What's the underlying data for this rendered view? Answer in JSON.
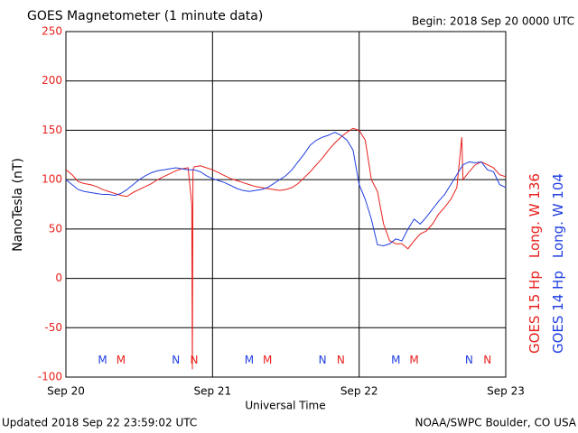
{
  "chart_data": {
    "type": "line",
    "title": "GOES Magnetometer (1 minute data)",
    "subtitle": "Begin:  2018 Sep 20 0000 UTC",
    "ylabel": "NanoTesla (nT)",
    "xlabel": "Universal Time",
    "footer_left": "Updated 2018 Sep 22 23:59:02 UTC",
    "footer_right": "NOAA/SWPC Boulder, CO USA",
    "xlim": [
      0,
      72
    ],
    "xticks": [
      {
        "value": 0,
        "label": "Sep 20"
      },
      {
        "value": 24,
        "label": "Sep 21"
      },
      {
        "value": 48,
        "label": "Sep 22"
      },
      {
        "value": 72,
        "label": "Sep 23"
      }
    ],
    "ylim": [
      -100,
      250
    ],
    "yticks": [
      -100,
      -50,
      0,
      50,
      100,
      150,
      200,
      250
    ],
    "grid": true,
    "series": [
      {
        "name": "GOES 15 Hp",
        "longitude": "Long. W 136",
        "color": "#e8201c",
        "x": [
          0,
          1,
          2,
          3,
          4,
          5,
          6,
          7,
          8,
          9,
          10,
          11,
          12,
          13,
          14,
          15,
          16,
          17,
          18,
          19,
          20,
          20.6,
          20.7,
          20.8,
          21,
          22,
          23,
          24,
          25,
          26,
          27,
          28,
          29,
          30,
          31,
          32,
          33,
          34,
          35,
          36,
          37,
          38,
          39,
          40,
          41,
          42,
          43,
          44,
          45,
          46,
          47,
          48,
          49,
          50,
          51,
          52,
          53,
          54,
          55,
          56,
          57,
          58,
          59,
          60,
          61,
          62,
          63,
          64,
          64.8,
          65,
          66,
          67,
          68,
          69,
          70,
          71,
          72
        ],
        "values": [
          110,
          105,
          98,
          96,
          95,
          93,
          90,
          88,
          86,
          84,
          83,
          87,
          90,
          93,
          96,
          100,
          103,
          106,
          109,
          111,
          112,
          75,
          -92,
          110,
          113,
          114,
          112,
          110,
          107,
          104,
          101,
          99,
          97,
          95,
          93,
          92,
          91,
          90,
          89,
          90,
          92,
          96,
          102,
          108,
          115,
          122,
          130,
          137,
          143,
          148,
          152,
          150,
          140,
          100,
          88,
          55,
          38,
          35,
          35,
          30,
          38,
          45,
          48,
          55,
          65,
          72,
          80,
          92,
          143,
          100,
          108,
          115,
          118,
          115,
          112,
          105,
          103
        ]
      },
      {
        "name": "GOES 14 Hp",
        "longitude": "Long. W 104",
        "color": "#1f3ee0",
        "x": [
          0,
          1,
          2,
          3,
          4,
          5,
          6,
          7,
          8,
          9,
          10,
          11,
          12,
          13,
          14,
          15,
          16,
          17,
          18,
          19,
          20,
          21,
          22,
          23,
          24,
          25,
          26,
          27,
          28,
          29,
          30,
          31,
          32,
          33,
          34,
          35,
          36,
          37,
          38,
          39,
          40,
          41,
          42,
          43,
          44,
          45,
          46,
          47,
          48,
          49,
          50,
          51,
          52,
          53,
          54,
          55,
          56,
          57,
          58,
          59,
          60,
          61,
          62,
          63,
          64,
          65,
          66,
          67,
          68,
          69,
          70,
          71,
          72
        ],
        "values": [
          100,
          95,
          90,
          88,
          87,
          86,
          85,
          85,
          84,
          86,
          90,
          95,
          100,
          104,
          107,
          109,
          110,
          111,
          112,
          111,
          110,
          110,
          108,
          104,
          101,
          99,
          97,
          94,
          91,
          89,
          88,
          89,
          90,
          92,
          96,
          100,
          104,
          110,
          118,
          126,
          135,
          140,
          143,
          145,
          148,
          145,
          140,
          130,
          95,
          80,
          60,
          34,
          33,
          35,
          40,
          38,
          50,
          60,
          55,
          62,
          70,
          78,
          85,
          95,
          105,
          115,
          118,
          117,
          118,
          110,
          108,
          95,
          92
        ]
      }
    ],
    "annotations": [
      {
        "text": "M",
        "x": 6,
        "y": -83,
        "color": "#1f3ee0"
      },
      {
        "text": "M",
        "x": 9,
        "y": -83,
        "color": "#e8201c"
      },
      {
        "text": "N",
        "x": 18,
        "y": -83,
        "color": "#1f3ee0"
      },
      {
        "text": "N",
        "x": 21,
        "y": -83,
        "color": "#e8201c"
      },
      {
        "text": "M",
        "x": 30,
        "y": -83,
        "color": "#1f3ee0"
      },
      {
        "text": "M",
        "x": 33,
        "y": -83,
        "color": "#e8201c"
      },
      {
        "text": "N",
        "x": 42,
        "y": -83,
        "color": "#1f3ee0"
      },
      {
        "text": "N",
        "x": 45,
        "y": -83,
        "color": "#e8201c"
      },
      {
        "text": "M",
        "x": 54,
        "y": -83,
        "color": "#1f3ee0"
      },
      {
        "text": "M",
        "x": 57,
        "y": -83,
        "color": "#e8201c"
      },
      {
        "text": "N",
        "x": 66,
        "y": -83,
        "color": "#1f3ee0"
      },
      {
        "text": "N",
        "x": 69,
        "y": -83,
        "color": "#e8201c"
      }
    ]
  }
}
